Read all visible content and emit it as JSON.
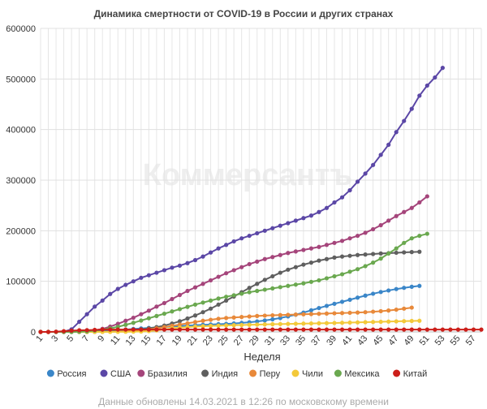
{
  "chart_title": "Динамика смертности от COVID-19 в России и других странах",
  "watermark": "Коммерсантъ",
  "footer": "Данные обновлены 14.03.2021 в 12:26 по московскому времени",
  "chart_data": {
    "type": "line",
    "title": "Динамика смертности от COVID-19 в России и других странах",
    "xlabel": "Неделя",
    "ylabel": "",
    "xlim": [
      1,
      58
    ],
    "ylim": [
      0,
      600000
    ],
    "y_ticks": [
      "0",
      "100000",
      "200000",
      "300000",
      "400000",
      "500000",
      "600000"
    ],
    "x_ticks": [
      "1",
      "3",
      "5",
      "7",
      "9",
      "11",
      "13",
      "15",
      "17",
      "19",
      "21",
      "23",
      "25",
      "27",
      "29",
      "31",
      "33",
      "35",
      "37",
      "39",
      "41",
      "43",
      "45",
      "47",
      "49",
      "51",
      "53",
      "55",
      "57"
    ],
    "grid": true,
    "legend_position": "bottom",
    "series": [
      {
        "name": "Россия",
        "color": "#3a86c8",
        "x_start": 1,
        "values": [
          0,
          0,
          0,
          0,
          0,
          100,
          300,
          800,
          1500,
          2500,
          3500,
          4700,
          5800,
          6800,
          7800,
          8800,
          9700,
          10700,
          11600,
          12500,
          13300,
          14000,
          14600,
          15200,
          15900,
          16700,
          17800,
          19100,
          20700,
          22700,
          24900,
          27500,
          30600,
          34100,
          38200,
          42700,
          47200,
          51400,
          55600,
          59600,
          63600,
          67800,
          71800,
          75500,
          78900,
          81900,
          84700,
          87100,
          89200,
          91000
        ]
      },
      {
        "name": "США",
        "color": "#5b47a6",
        "x_start": 1,
        "values": [
          0,
          0,
          0,
          500,
          5000,
          20000,
          35000,
          50000,
          62000,
          75000,
          85000,
          93000,
          100000,
          107000,
          112000,
          117000,
          122000,
          127000,
          131000,
          136000,
          142000,
          149000,
          157000,
          165000,
          172000,
          179000,
          185000,
          190000,
          195000,
          200000,
          205000,
          210000,
          215000,
          220000,
          225000,
          230000,
          237000,
          245000,
          256000,
          266000,
          280000,
          297000,
          313000,
          330000,
          350000,
          370000,
          395000,
          417000,
          441000,
          467000,
          487000,
          503000,
          522000
        ]
      },
      {
        "name": "Бразилия",
        "color": "#a5457b",
        "x_start": 1,
        "values": [
          0,
          0,
          0,
          0,
          0,
          200,
          1200,
          3000,
          6000,
          10500,
          16000,
          22000,
          28000,
          35000,
          42000,
          50000,
          57000,
          65000,
          73000,
          81000,
          88000,
          95000,
          102000,
          109000,
          116000,
          122000,
          128000,
          134000,
          139000,
          144000,
          148000,
          152000,
          156000,
          159000,
          162000,
          165000,
          168000,
          172000,
          176000,
          180000,
          185000,
          190000,
          196000,
          203000,
          211000,
          220000,
          229000,
          237000,
          245000,
          256000,
          268000
        ]
      },
      {
        "name": "Индия",
        "color": "#5f5f5f",
        "x_start": 1,
        "values": [
          0,
          0,
          0,
          0,
          0,
          0,
          0,
          100,
          400,
          900,
          1600,
          2400,
          3500,
          5000,
          7000,
          9500,
          12500,
          16500,
          21000,
          26500,
          32500,
          39000,
          46000,
          54000,
          62000,
          70000,
          78500,
          87000,
          95000,
          103000,
          110000,
          117000,
          123000,
          128000,
          133000,
          137000,
          141000,
          144000,
          147000,
          149000,
          150500,
          152000,
          153000,
          154000,
          155000,
          155700,
          156500,
          157200,
          157800,
          158400
        ]
      },
      {
        "name": "Перу",
        "color": "#e8893a",
        "x_start": 1,
        "values": [
          0,
          0,
          0,
          0,
          0,
          0,
          0,
          0,
          100,
          300,
          600,
          1200,
          2000,
          3200,
          5000,
          7000,
          9500,
          12000,
          14500,
          17000,
          19500,
          22000,
          24000,
          26000,
          27500,
          28500,
          29500,
          30500,
          31500,
          32200,
          32800,
          33300,
          33800,
          34300,
          34800,
          35300,
          35800,
          36300,
          36800,
          37300,
          37800,
          38300,
          39000,
          40000,
          41000,
          42300,
          44000,
          46000,
          48000
        ]
      },
      {
        "name": "Чили",
        "color": "#f3c93a",
        "x_start": 1,
        "values": [
          0,
          0,
          0,
          0,
          0,
          0,
          0,
          0,
          0,
          100,
          200,
          300,
          500,
          800,
          1500,
          3000,
          5000,
          7000,
          8500,
          9500,
          10500,
          11200,
          11800,
          12300,
          12800,
          13200,
          13600,
          14000,
          14400,
          14800,
          15200,
          15500,
          15800,
          16100,
          16400,
          16700,
          17000,
          17300,
          17600,
          18000,
          18400,
          18800,
          19200,
          19600,
          20000,
          20400,
          20800,
          21200,
          21600,
          22000
        ]
      },
      {
        "name": "Мексика",
        "color": "#6aa84f",
        "x_start": 1,
        "values": [
          0,
          0,
          0,
          0,
          0,
          300,
          1000,
          2500,
          4500,
          7000,
          10000,
          14000,
          18000,
          22500,
          27000,
          31500,
          36000,
          40500,
          45000,
          49500,
          54000,
          58000,
          62000,
          66000,
          69500,
          72500,
          75500,
          78500,
          81000,
          83500,
          86000,
          88500,
          91000,
          93500,
          96000,
          99000,
          102000,
          106000,
          110000,
          114000,
          119000,
          124000,
          130000,
          137000,
          145000,
          155000,
          165000,
          176000,
          185000,
          190000,
          194000
        ]
      },
      {
        "name": "Китай",
        "color": "#cc1f1a",
        "x_start": 1,
        "values": [
          0,
          0,
          500,
          1500,
          2500,
          3300,
          3500,
          4000,
          4600,
          4600,
          4600,
          4600,
          4600,
          4600,
          4600,
          4600,
          4600,
          4600,
          4600,
          4600,
          4600,
          4600,
          4600,
          4600,
          4600,
          4600,
          4600,
          4600,
          4600,
          4600,
          4600,
          4600,
          4600,
          4600,
          4600,
          4600,
          4600,
          4600,
          4600,
          4600,
          4600,
          4600,
          4600,
          4600,
          4600,
          4600,
          4600,
          4600,
          4600,
          4600,
          4600,
          4600,
          4600,
          4600,
          4600,
          4600,
          4600,
          4600
        ]
      }
    ]
  }
}
